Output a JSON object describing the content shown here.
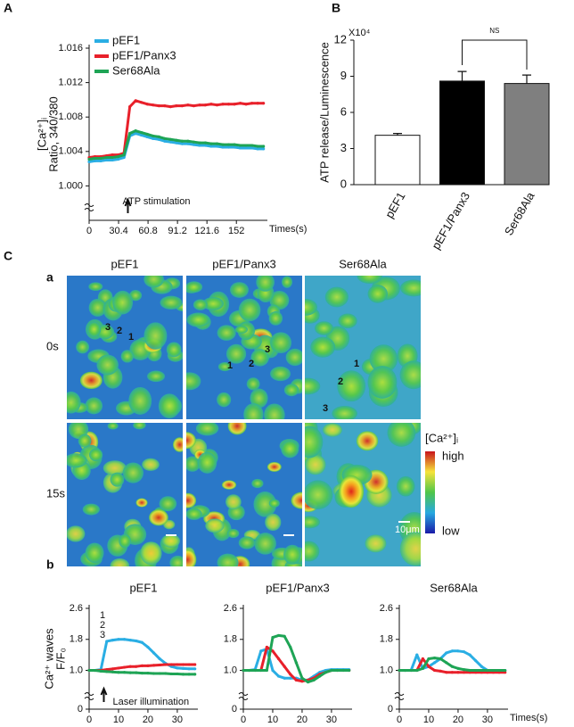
{
  "panel_labels": [
    "A",
    "B",
    "C",
    "a",
    "b"
  ],
  "chart_data": [
    {
      "type": "line",
      "y_label": [
        "[Ca²⁺]ᵢ",
        "Ratio, 340/380"
      ],
      "x_label": "Times(s)",
      "annotation": "ATP stimulation",
      "x": [
        0,
        6,
        12,
        18,
        24,
        30,
        36,
        42,
        48,
        54,
        60,
        66,
        72,
        78,
        84,
        90,
        96,
        102,
        108,
        114,
        120,
        126,
        132,
        138,
        144,
        150,
        156,
        162,
        168,
        174,
        180
      ],
      "xlim": [
        0,
        184
      ],
      "xticks": [
        0,
        30.4,
        60.8,
        91.2,
        121.6,
        152
      ],
      "ylim": [
        0.996,
        1.016
      ],
      "yticks": [
        {
          "value": 1,
          "label": "1.000"
        },
        1.004,
        1.008,
        1.012,
        1.016
      ],
      "series": [
        {
          "name": "pEF1",
          "color": "#2aaee4",
          "values": [
            1.0028,
            1.0029,
            1.0029,
            1.003,
            1.003,
            1.0031,
            1.0033,
            1.0058,
            1.0061,
            1.0059,
            1.0057,
            1.0055,
            1.0054,
            1.0052,
            1.0051,
            1.005,
            1.0049,
            1.0049,
            1.0048,
            1.0047,
            1.0047,
            1.0046,
            1.0046,
            1.0045,
            1.0045,
            1.0045,
            1.0044,
            1.0044,
            1.0044,
            1.0043,
            1.0043
          ]
        },
        {
          "name": "pEF1/Panx3",
          "color": "#e8202a",
          "values": [
            1.0033,
            1.0034,
            1.0034,
            1.0035,
            1.0036,
            1.0036,
            1.0038,
            1.0092,
            1.0099,
            1.0097,
            1.0095,
            1.0094,
            1.0093,
            1.0093,
            1.0092,
            1.0093,
            1.0093,
            1.0094,
            1.0093,
            1.0094,
            1.0094,
            1.0095,
            1.0094,
            1.0095,
            1.0095,
            1.0095,
            1.0096,
            1.0095,
            1.0096,
            1.0096,
            1.0096
          ]
        },
        {
          "name": "Ser68Ala",
          "color": "#1ea455",
          "values": [
            1.0031,
            1.0032,
            1.0032,
            1.0033,
            1.0033,
            1.0034,
            1.0036,
            1.0061,
            1.0064,
            1.0062,
            1.006,
            1.0058,
            1.0057,
            1.0055,
            1.0054,
            1.0053,
            1.0052,
            1.0052,
            1.0051,
            1.005,
            1.005,
            1.0049,
            1.0049,
            1.0048,
            1.0048,
            1.0048,
            1.0047,
            1.0047,
            1.0047,
            1.0046,
            1.0046
          ]
        }
      ]
    },
    {
      "type": "bar",
      "y_label": "ATP release/Luminescence",
      "unit_label": "X10⁴",
      "annotation": "NS",
      "categories": [
        "pEF1",
        "pEF1/Panx3",
        "Ser68Ala"
      ],
      "values": [
        4.1,
        8.6,
        8.4
      ],
      "errors": [
        0.15,
        0.8,
        0.7
      ],
      "colors": [
        "#ffffff",
        "#000000",
        "#7f7f7f"
      ],
      "ylim": [
        0,
        12
      ],
      "yticks": [
        0,
        3,
        6,
        9,
        12
      ]
    },
    {
      "type": "line",
      "title": "pEF1",
      "y_label": [
        "Ca²⁺ waves",
        "F/F₀"
      ],
      "annotation": "Laser illumination",
      "x": [
        0,
        2,
        4,
        6,
        8,
        10,
        12,
        14,
        16,
        18,
        20,
        22,
        24,
        26,
        28,
        30,
        32,
        34,
        36
      ],
      "xlim": [
        0,
        37
      ],
      "xticks": [
        0,
        10,
        20,
        30
      ],
      "ylim": [
        0,
        2.6
      ],
      "yticks": [
        0,
        {
          "value": 1,
          "label": "1.0"
        },
        1.8,
        2.6
      ],
      "series": [
        {
          "name": "1",
          "color": "#2aaee4",
          "values": [
            1,
            1,
            1.02,
            1.75,
            1.78,
            1.8,
            1.8,
            1.78,
            1.76,
            1.72,
            1.6,
            1.45,
            1.3,
            1.18,
            1.1,
            1.06,
            1.05,
            1.04,
            1.04
          ]
        },
        {
          "name": "2",
          "color": "#e8202a",
          "values": [
            1,
            1,
            1,
            1.02,
            1.04,
            1.06,
            1.08,
            1.1,
            1.1,
            1.12,
            1.12,
            1.13,
            1.14,
            1.15,
            1.15,
            1.15,
            1.15,
            1.15,
            1.15
          ]
        },
        {
          "name": "3",
          "color": "#1ea455",
          "values": [
            1,
            1,
            0.98,
            0.97,
            0.96,
            0.95,
            0.95,
            0.94,
            0.94,
            0.93,
            0.93,
            0.92,
            0.92,
            0.92,
            0.91,
            0.91,
            0.9,
            0.9,
            0.9
          ]
        }
      ]
    },
    {
      "type": "line",
      "title": "pEF1/Panx3",
      "x": [
        0,
        2,
        4,
        6,
        8,
        10,
        12,
        14,
        16,
        18,
        20,
        22,
        24,
        26,
        28,
        30,
        32,
        34,
        36
      ],
      "xlim": [
        0,
        37
      ],
      "xticks": [
        0,
        10,
        20,
        30
      ],
      "ylim": [
        0,
        2.6
      ],
      "yticks": [
        0,
        {
          "value": 1,
          "label": "1.0"
        },
        1.8,
        2.6
      ],
      "series": [
        {
          "color": "#2aaee4",
          "values": [
            1,
            1,
            1.02,
            1.5,
            1.55,
            1,
            0.85,
            0.8,
            0.8,
            0.8,
            0.75,
            0.75,
            0.85,
            0.95,
            1,
            1.02,
            1.02,
            1.02,
            1.02
          ]
        },
        {
          "color": "#e8202a",
          "values": [
            1,
            1,
            1,
            1,
            1.6,
            1.5,
            1.3,
            1.1,
            0.9,
            0.75,
            0.72,
            0.75,
            0.8,
            0.9,
            0.95,
            1,
            1,
            1,
            1
          ]
        },
        {
          "color": "#1ea455",
          "values": [
            1,
            1,
            1,
            1,
            1,
            1.85,
            1.9,
            1.88,
            1.6,
            1.2,
            0.8,
            0.7,
            0.75,
            0.85,
            0.95,
            1,
            1,
            1,
            1
          ]
        }
      ]
    },
    {
      "type": "line",
      "title": "Ser68Ala",
      "x_label": "Times(s)",
      "x": [
        0,
        2,
        4,
        6,
        8,
        10,
        12,
        14,
        16,
        18,
        20,
        22,
        24,
        26,
        28,
        30,
        32,
        34,
        36
      ],
      "xlim": [
        0,
        37
      ],
      "xticks": [
        0,
        10,
        20,
        30
      ],
      "ylim": [
        0,
        2.6
      ],
      "yticks": [
        0,
        {
          "value": 1,
          "label": "1.0"
        },
        1.8,
        2.6
      ],
      "series": [
        {
          "color": "#2aaee4",
          "values": [
            1,
            1,
            1,
            1.4,
            1.05,
            1.1,
            1.2,
            1.3,
            1.45,
            1.5,
            1.5,
            1.48,
            1.4,
            1.25,
            1.1,
            1,
            1,
            1,
            1
          ]
        },
        {
          "color": "#e8202a",
          "values": [
            1,
            1,
            1,
            1,
            1.3,
            1.1,
            1,
            0.98,
            0.95,
            0.95,
            0.95,
            0.95,
            0.95,
            0.95,
            0.95,
            0.95,
            0.95,
            0.95,
            0.95
          ]
        },
        {
          "color": "#1ea455",
          "values": [
            1,
            1,
            1,
            1,
            1.05,
            1.3,
            1.32,
            1.3,
            1.2,
            1.1,
            1.05,
            1.02,
            1,
            1,
            1,
            1,
            1,
            1,
            1
          ]
        }
      ]
    }
  ],
  "image_grid": {
    "columns": [
      "pEF1",
      "pEF1/Panx3",
      "Ser68Ala"
    ],
    "rows": [
      "0s",
      "15s"
    ],
    "cell_numbers": [
      "1",
      "2",
      "3"
    ],
    "colorbar": {
      "title": "[Ca²⁺]ᵢ",
      "high": "high",
      "low": "low"
    },
    "scale_bar": "10μm"
  }
}
